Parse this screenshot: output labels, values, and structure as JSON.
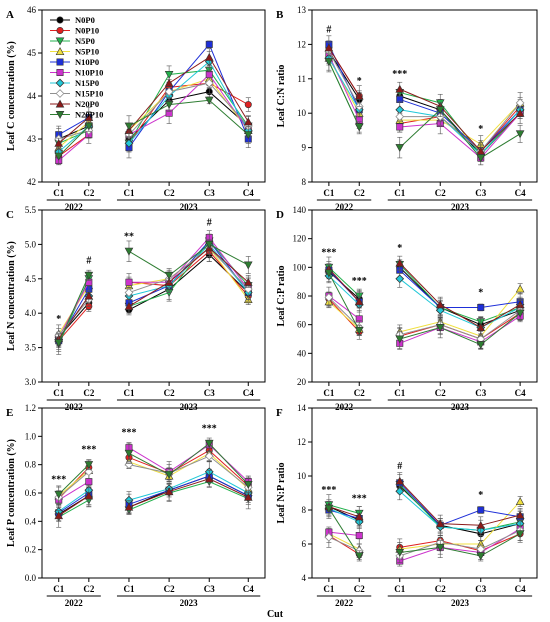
{
  "figure": {
    "xlabel": "Cut",
    "years": [
      "2022",
      "2023"
    ],
    "cuts": [
      "C1",
      "C2",
      "C1",
      "C2",
      "C3",
      "C4"
    ],
    "legend": [
      "N0P0",
      "N0P10",
      "N5P0",
      "N5P10",
      "N10P0",
      "N10P10",
      "N15P0",
      "N15P10",
      "N20P0",
      "N20P10"
    ],
    "series_style": [
      {
        "color": "#000000",
        "marker": "circle",
        "filled": true
      },
      {
        "color": "#e02020",
        "marker": "circle",
        "filled": true
      },
      {
        "color": "#22b14c",
        "marker": "tri-down",
        "filled": true
      },
      {
        "color": "#f0e040",
        "marker": "tri-up",
        "filled": true
      },
      {
        "color": "#1e2fd8",
        "marker": "square",
        "filled": true
      },
      {
        "color": "#cc33cc",
        "marker": "square",
        "filled": true
      },
      {
        "color": "#20c8d8",
        "marker": "diamond",
        "filled": true
      },
      {
        "color": "#909090",
        "marker": "diamond",
        "filled": false
      },
      {
        "color": "#8b1a1a",
        "marker": "tri-up",
        "filled": true
      },
      {
        "color": "#2e7d32",
        "marker": "tri-down",
        "filled": true
      }
    ]
  },
  "chart_data": [
    {
      "type": "line",
      "panel": "A",
      "ylabel": "Leaf C concentration (%)",
      "ylim": [
        42,
        46
      ],
      "yticks": [
        42,
        43,
        44,
        45,
        46
      ],
      "signif": [
        "",
        "",
        "",
        "",
        "",
        ""
      ],
      "series": [
        {
          "name": "N0P0",
          "values": [
            43.0,
            43.3,
            43.0,
            43.9,
            44.1,
            43.3
          ]
        },
        {
          "name": "N0P10",
          "values": [
            42.6,
            43.1,
            42.9,
            44.2,
            44.3,
            43.8
          ]
        },
        {
          "name": "N5P0",
          "values": [
            42.9,
            43.2,
            42.9,
            44.5,
            44.6,
            43.3
          ]
        },
        {
          "name": "N5P10",
          "values": [
            42.8,
            43.4,
            43.2,
            44.1,
            44.4,
            43.2
          ]
        },
        {
          "name": "N10P0",
          "values": [
            43.1,
            43.5,
            42.8,
            44.1,
            45.2,
            43.0
          ]
        },
        {
          "name": "N10P10",
          "values": [
            42.5,
            43.1,
            43.1,
            43.6,
            44.5,
            43.2
          ]
        },
        {
          "name": "N15P0",
          "values": [
            42.7,
            43.3,
            42.9,
            44.0,
            44.8,
            43.2
          ]
        },
        {
          "name": "N15P10",
          "values": [
            43.0,
            43.2,
            43.1,
            44.1,
            44.3,
            43.3
          ]
        },
        {
          "name": "N20P0",
          "values": [
            42.9,
            43.5,
            43.2,
            44.3,
            44.9,
            43.4
          ]
        },
        {
          "name": "N20P10",
          "values": [
            42.6,
            43.3,
            43.3,
            43.8,
            43.9,
            43.1
          ]
        }
      ]
    },
    {
      "type": "line",
      "panel": "B",
      "ylabel": "Leaf C:N ratio",
      "ylim": [
        8,
        13
      ],
      "yticks": [
        8,
        9,
        10,
        11,
        12,
        13
      ],
      "signif": [
        "#",
        "*",
        "***",
        "",
        "*",
        ""
      ],
      "series": [
        {
          "name": "N0P0",
          "values": [
            11.8,
            10.4,
            10.5,
            10.1,
            8.8,
            10.0
          ]
        },
        {
          "name": "N0P10",
          "values": [
            11.9,
            10.5,
            9.7,
            9.9,
            8.9,
            10.2
          ]
        },
        {
          "name": "N5P0",
          "values": [
            11.5,
            9.6,
            10.6,
            10.3,
            8.8,
            10.0
          ]
        },
        {
          "name": "N5P10",
          "values": [
            11.6,
            10.0,
            9.8,
            9.8,
            9.1,
            10.3
          ]
        },
        {
          "name": "N10P0",
          "values": [
            12.0,
            10.1,
            10.4,
            10.0,
            8.9,
            10.1
          ]
        },
        {
          "name": "N10P10",
          "values": [
            11.7,
            9.8,
            9.6,
            9.7,
            8.7,
            10.0
          ]
        },
        {
          "name": "N15P0",
          "values": [
            11.6,
            10.1,
            10.1,
            9.9,
            8.8,
            10.1
          ]
        },
        {
          "name": "N15P10",
          "values": [
            11.8,
            10.2,
            9.9,
            9.9,
            8.9,
            10.3
          ]
        },
        {
          "name": "N20P0",
          "values": [
            11.9,
            10.5,
            10.7,
            10.2,
            8.9,
            10.0
          ]
        },
        {
          "name": "N20P10",
          "values": [
            11.5,
            9.6,
            9.0,
            10.1,
            8.7,
            9.4
          ]
        }
      ]
    },
    {
      "type": "line",
      "panel": "C",
      "ylabel": "Leaf N concentration (%)",
      "ylim": [
        3.0,
        5.5
      ],
      "yticks": [
        3.0,
        3.5,
        4.0,
        4.5,
        5.0,
        5.5
      ],
      "signif": [
        "*",
        "#",
        "**",
        "",
        "#",
        ""
      ],
      "series": [
        {
          "name": "N0P0",
          "values": [
            3.65,
            4.15,
            4.05,
            4.35,
            4.85,
            4.3
          ]
        },
        {
          "name": "N0P10",
          "values": [
            3.6,
            4.1,
            4.45,
            4.4,
            4.9,
            4.25
          ]
        },
        {
          "name": "N5P0",
          "values": [
            3.55,
            4.5,
            4.1,
            4.3,
            5.05,
            4.4
          ]
        },
        {
          "name": "N5P10",
          "values": [
            3.7,
            4.4,
            4.4,
            4.5,
            4.95,
            4.2
          ]
        },
        {
          "name": "N10P0",
          "values": [
            3.6,
            4.35,
            4.15,
            4.4,
            5.05,
            4.3
          ]
        },
        {
          "name": "N10P10",
          "values": [
            3.65,
            4.45,
            4.45,
            4.45,
            5.1,
            4.35
          ]
        },
        {
          "name": "N15P0",
          "values": [
            3.62,
            4.25,
            4.25,
            4.4,
            5.0,
            4.3
          ]
        },
        {
          "name": "N15P10",
          "values": [
            3.68,
            4.2,
            4.3,
            4.5,
            4.95,
            4.35
          ]
        },
        {
          "name": "N20P0",
          "values": [
            3.63,
            4.25,
            4.1,
            4.45,
            4.95,
            4.45
          ]
        },
        {
          "name": "N20P10",
          "values": [
            3.57,
            4.55,
            4.9,
            4.55,
            5.0,
            4.7
          ]
        }
      ]
    },
    {
      "type": "line",
      "panel": "D",
      "ylabel": "Leaf C:P ratio",
      "ylim": [
        20,
        140
      ],
      "yticks": [
        20,
        40,
        60,
        80,
        100,
        120,
        140
      ],
      "signif": [
        "***",
        "***",
        "*",
        "",
        "*",
        ""
      ],
      "series": [
        {
          "name": "N0P0",
          "values": [
            97,
            78,
            100,
            72,
            60,
            70
          ]
        },
        {
          "name": "N0P10",
          "values": [
            78,
            55,
            52,
            60,
            50,
            68
          ]
        },
        {
          "name": "N5P0",
          "values": [
            100,
            80,
            102,
            72,
            62,
            72
          ]
        },
        {
          "name": "N5P10",
          "values": [
            76,
            57,
            55,
            62,
            52,
            85
          ]
        },
        {
          "name": "N10P0",
          "values": [
            98,
            76,
            98,
            72,
            72,
            76
          ]
        },
        {
          "name": "N10P10",
          "values": [
            80,
            64,
            47,
            58,
            48,
            66
          ]
        },
        {
          "name": "N15P0",
          "values": [
            94,
            74,
            92,
            70,
            58,
            72
          ]
        },
        {
          "name": "N15P10",
          "values": [
            79,
            58,
            53,
            60,
            50,
            70
          ]
        },
        {
          "name": "N20P0",
          "values": [
            99,
            76,
            103,
            74,
            58,
            74
          ]
        },
        {
          "name": "N20P10",
          "values": [
            96,
            56,
            50,
            58,
            46,
            68
          ]
        }
      ]
    },
    {
      "type": "line",
      "panel": "E",
      "ylabel": "Leaf P concentration (%)",
      "ylim": [
        0.0,
        1.2
      ],
      "yticks": [
        0.0,
        0.2,
        0.4,
        0.6,
        0.8,
        1.0,
        1.2
      ],
      "signif": [
        "***",
        "***",
        "***",
        "",
        "***",
        ""
      ],
      "series": [
        {
          "name": "N0P0",
          "values": [
            0.45,
            0.58,
            0.5,
            0.62,
            0.72,
            0.58
          ]
        },
        {
          "name": "N0P10",
          "values": [
            0.56,
            0.78,
            0.85,
            0.74,
            0.9,
            0.65
          ]
        },
        {
          "name": "N5P0",
          "values": [
            0.43,
            0.55,
            0.48,
            0.6,
            0.68,
            0.56
          ]
        },
        {
          "name": "N5P10",
          "values": [
            0.58,
            0.76,
            0.82,
            0.72,
            0.88,
            0.63
          ]
        },
        {
          "name": "N10P0",
          "values": [
            0.46,
            0.6,
            0.52,
            0.62,
            0.72,
            0.58
          ]
        },
        {
          "name": "N10P10",
          "values": [
            0.55,
            0.68,
            0.92,
            0.75,
            0.94,
            0.68
          ]
        },
        {
          "name": "N15P0",
          "values": [
            0.47,
            0.62,
            0.55,
            0.63,
            0.75,
            0.6
          ]
        },
        {
          "name": "N15P10",
          "values": [
            0.57,
            0.75,
            0.8,
            0.74,
            0.86,
            0.64
          ]
        },
        {
          "name": "N20P0",
          "values": [
            0.44,
            0.58,
            0.5,
            0.61,
            0.7,
            0.57
          ]
        },
        {
          "name": "N20P10",
          "values": [
            0.59,
            0.8,
            0.88,
            0.73,
            0.95,
            0.66
          ]
        }
      ]
    },
    {
      "type": "line",
      "panel": "F",
      "ylabel": "Leaf N:P ratio",
      "ylim": [
        4,
        14
      ],
      "yticks": [
        4,
        6,
        8,
        10,
        12,
        14
      ],
      "signif": [
        "***",
        "***",
        "#",
        "",
        "*",
        ""
      ],
      "series": [
        {
          "name": "N0P0",
          "values": [
            8.2,
            7.4,
            9.4,
            7.1,
            6.6,
            7.2
          ]
        },
        {
          "name": "N0P10",
          "values": [
            6.5,
            5.4,
            5.8,
            6.2,
            5.6,
            6.6
          ]
        },
        {
          "name": "N5P0",
          "values": [
            8.3,
            7.8,
            9.5,
            7.0,
            6.8,
            7.3
          ]
        },
        {
          "name": "N5P10",
          "values": [
            6.6,
            5.7,
            5.7,
            6.0,
            6.0,
            8.5
          ]
        },
        {
          "name": "N10P0",
          "values": [
            8.0,
            7.5,
            9.6,
            7.1,
            8.0,
            7.6
          ]
        },
        {
          "name": "N10P10",
          "values": [
            6.7,
            6.5,
            5.0,
            5.8,
            5.5,
            6.9
          ]
        },
        {
          "name": "N15P0",
          "values": [
            8.1,
            7.3,
            9.1,
            7.0,
            6.8,
            7.2
          ]
        },
        {
          "name": "N15P10",
          "values": [
            6.4,
            5.6,
            5.3,
            6.1,
            5.7,
            6.8
          ]
        },
        {
          "name": "N20P0",
          "values": [
            8.2,
            7.6,
            9.7,
            7.2,
            7.1,
            7.7
          ]
        },
        {
          "name": "N20P10",
          "values": [
            8.1,
            5.3,
            5.5,
            5.8,
            5.3,
            6.6
          ]
        }
      ]
    }
  ]
}
